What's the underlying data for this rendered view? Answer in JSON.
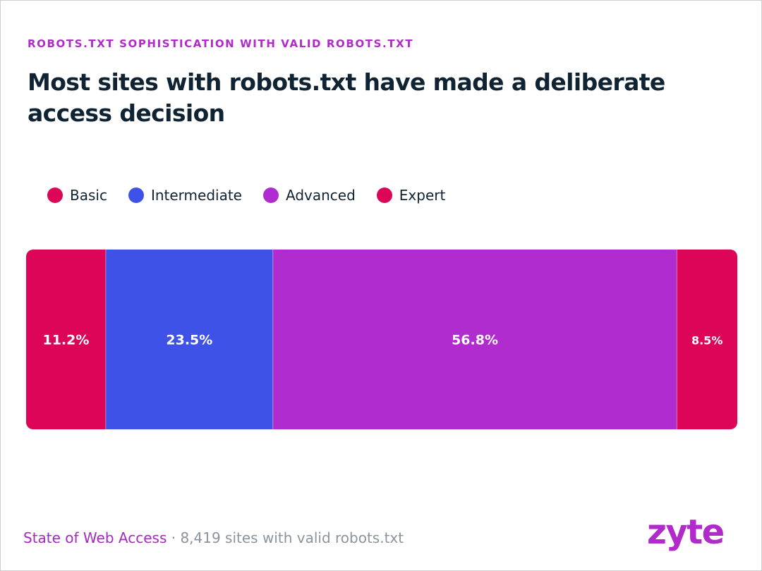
{
  "header": {
    "kicker": "ROBOTS.TXT SOPHISTICATION WITH VALID ROBOTS.TXT",
    "title": "Most sites with robots.txt have made a deliberate access decision"
  },
  "chart_data": {
    "type": "bar",
    "orientation": "horizontal-stacked",
    "title": "Most sites with robots.txt have made a deliberate access decision",
    "subtitle": "ROBOTS.TXT SOPHISTICATION WITH VALID ROBOTS.TXT",
    "legend_position": "top-left",
    "grid": false,
    "series": [
      {
        "name": "Basic",
        "value": 11.2,
        "label": "11.2%",
        "color": "#dc0558"
      },
      {
        "name": "Intermediate",
        "value": 23.5,
        "label": "23.5%",
        "color": "#3f52e8"
      },
      {
        "name": "Advanced",
        "value": 56.8,
        "label": "56.8%",
        "color": "#b02ccf"
      },
      {
        "name": "Expert",
        "value": 8.5,
        "label": "8.5%",
        "color": "#dc0558"
      }
    ]
  },
  "footer": {
    "source": "State of Web Access",
    "separator": " · ",
    "note": "8,419 sites with valid robots.txt"
  },
  "brand": {
    "logo_text": "zyte",
    "color": "#b02bc9"
  }
}
